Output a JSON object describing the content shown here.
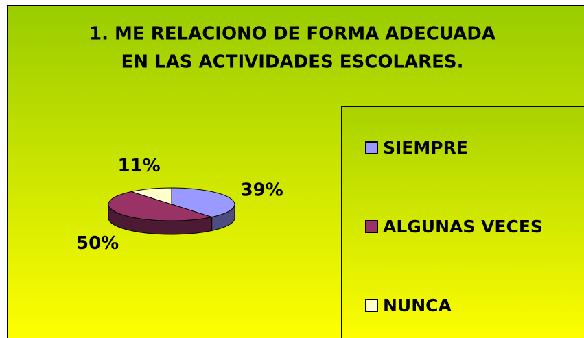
{
  "chart_data": {
    "type": "pie3d",
    "title": [
      "1. ME RELACIONO DE FORMA ADECUADA",
      "EN LAS ACTIVIDADES ESCOLARES."
    ],
    "categories": [
      "SIEMPRE",
      "ALGUNAS VECES",
      "NUNCA"
    ],
    "values": [
      39,
      50,
      11
    ],
    "value_labels": [
      "39%",
      "50%",
      "11%"
    ],
    "colors": [
      "#9999ff",
      "#993366",
      "#ffffcc"
    ],
    "legend": "right"
  }
}
